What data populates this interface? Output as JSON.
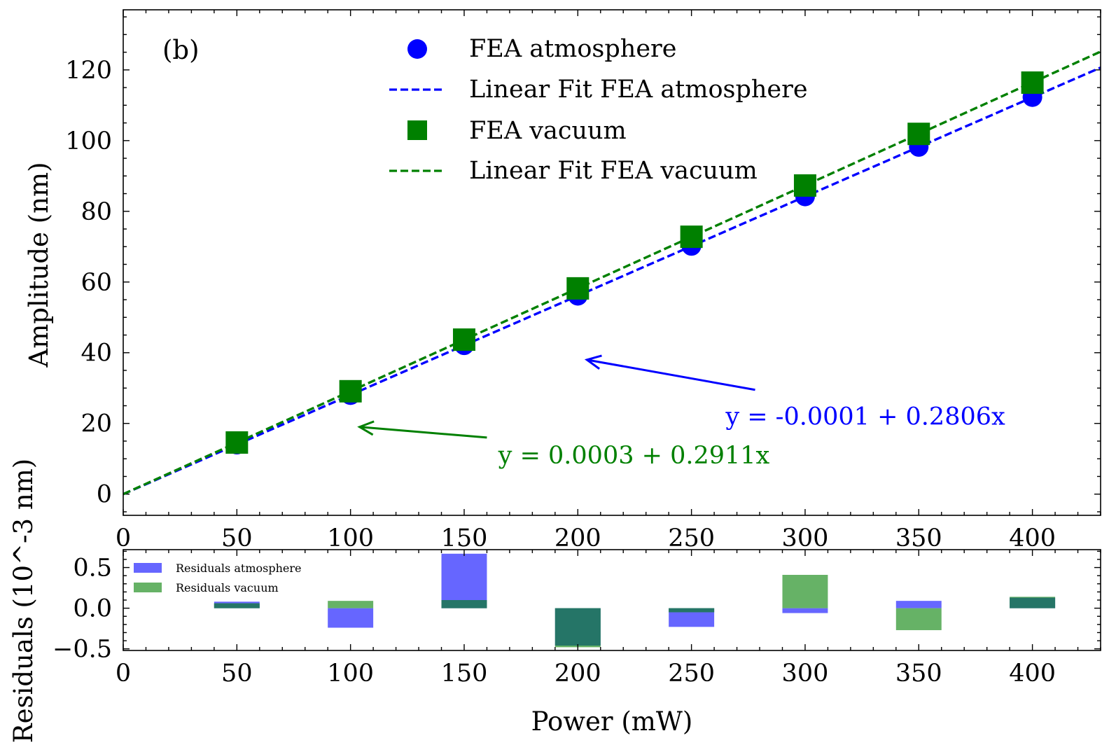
{
  "chart_data": [
    {
      "type": "scatter",
      "panel_label": "(b)",
      "xlabel": "",
      "ylabel": "Amplitude (nm)",
      "xlim": [
        0,
        430
      ],
      "ylim": [
        -6,
        137
      ],
      "xticks": [
        0,
        50,
        100,
        150,
        200,
        250,
        300,
        350,
        400
      ],
      "yticks": [
        0,
        20,
        40,
        60,
        80,
        100,
        120
      ],
      "legend_position": "top-center",
      "series": [
        {
          "name": "FEA atmosphere",
          "marker": "circle",
          "color": "#0000ff",
          "x": [
            50,
            100,
            150,
            200,
            250,
            300,
            350,
            400
          ],
          "y": [
            14.0,
            28.0,
            42.1,
            56.1,
            70.2,
            84.2,
            98.2,
            112.3
          ]
        },
        {
          "name": "Linear Fit FEA atmosphere",
          "style": "dashed",
          "color": "#0000ff",
          "intercept": -0.0001,
          "slope": 0.2806
        },
        {
          "name": "FEA vacuum",
          "marker": "square",
          "color": "#008000",
          "x": [
            50,
            100,
            150,
            200,
            250,
            300,
            350,
            400
          ],
          "y": [
            14.6,
            29.1,
            43.7,
            58.2,
            72.8,
            87.3,
            101.9,
            116.4
          ]
        },
        {
          "name": "Linear Fit FEA vacuum",
          "style": "dashed",
          "color": "#008000",
          "intercept": 0.0003,
          "slope": 0.2911
        }
      ],
      "annotations": [
        {
          "text": "y = -0.0001 + 0.2806x",
          "color": "#0000ff",
          "arrow_to": [
            204,
            38
          ],
          "arrow_from": [
            278,
            29.5
          ],
          "text_at": [
            265,
            22
          ]
        },
        {
          "text": "y = 0.0003 + 0.2911x",
          "color": "#008000",
          "arrow_to": [
            104,
            19
          ],
          "arrow_from": [
            160,
            16
          ],
          "text_at": [
            165,
            11
          ]
        }
      ]
    },
    {
      "type": "bar",
      "xlabel": "Power (mW)",
      "ylabel": "Residuals (10^-3 nm)",
      "xlim": [
        0,
        430
      ],
      "ylim": [
        -0.52,
        0.72
      ],
      "xticks": [
        0,
        50,
        100,
        150,
        200,
        250,
        300,
        350,
        400
      ],
      "yticks": [
        0.5,
        0.0,
        -0.5
      ],
      "ytick_labels": [
        "0.5",
        "0.0",
        "−0.5"
      ],
      "legend_position": "top-left",
      "bar_width": 20,
      "categories": [
        50,
        100,
        150,
        200,
        250,
        300,
        350,
        400
      ],
      "series": [
        {
          "name": "Residuals atmosphere",
          "color": "#6666ff",
          "values": [
            0.08,
            -0.24,
            0.67,
            -0.46,
            -0.23,
            -0.06,
            0.09,
            0.13
          ]
        },
        {
          "name": "Residuals vacuum",
          "color": "#66b266",
          "values": [
            0.06,
            0.09,
            0.1,
            -0.48,
            -0.05,
            0.41,
            -0.27,
            0.14
          ]
        }
      ],
      "overlap_color": "#257567"
    }
  ]
}
